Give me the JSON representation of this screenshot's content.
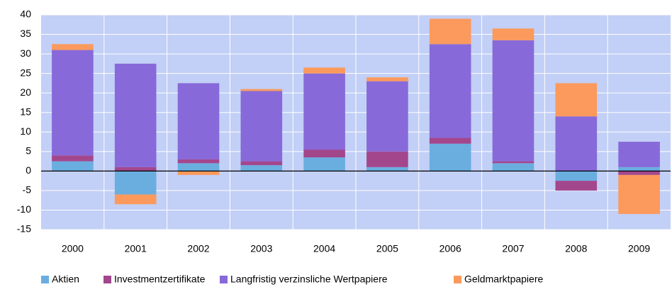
{
  "chart_data": {
    "type": "bar",
    "stacked": true,
    "categories": [
      "2000",
      "2001",
      "2002",
      "2003",
      "2004",
      "2005",
      "2006",
      "2007",
      "2008",
      "2009"
    ],
    "series": [
      {
        "name": "Aktien",
        "color": "#6aaee0",
        "values": [
          2.5,
          -6,
          2,
          1.5,
          3.5,
          1,
          7,
          2,
          -2.5,
          1
        ]
      },
      {
        "name": "Investmentzertifikate",
        "color": "#a3478d",
        "values": [
          1.5,
          1,
          1,
          1,
          2,
          4,
          1.5,
          0.5,
          -2.5,
          -1
        ]
      },
      {
        "name": "Langfristig verzinsliche Wertpapiere",
        "color": "#8769d9",
        "values": [
          27,
          26.5,
          19.5,
          18,
          19.5,
          18,
          24,
          31,
          14,
          6.5
        ]
      },
      {
        "name": "Geldmarktpapiere",
        "color": "#fb9a5c",
        "values": [
          1.5,
          -2.5,
          -1,
          0.5,
          1.5,
          1,
          6.5,
          3,
          8.5,
          -10
        ]
      }
    ],
    "ylim": [
      -15,
      40
    ],
    "yticks": [
      -15,
      -10,
      -5,
      0,
      5,
      10,
      15,
      20,
      25,
      30,
      35,
      40
    ],
    "grid": true
  }
}
